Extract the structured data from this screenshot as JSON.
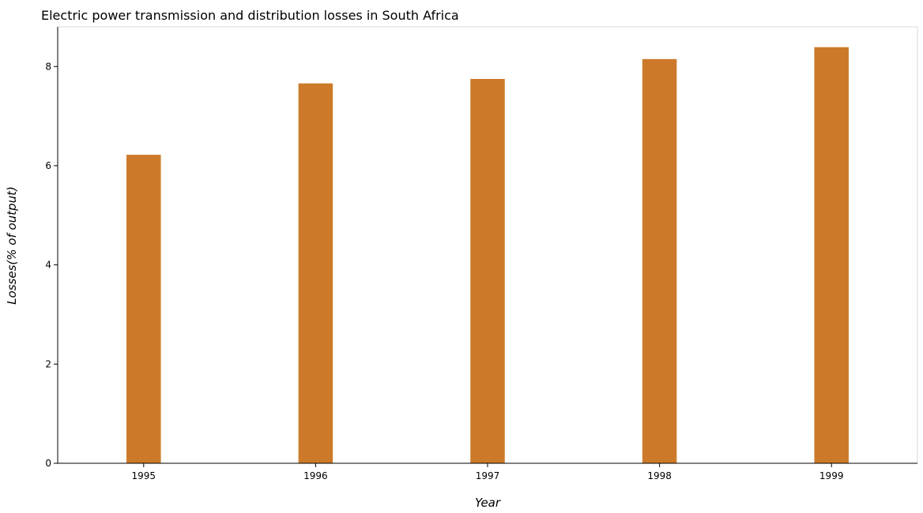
{
  "chart_data": {
    "type": "bar",
    "title": "Electric power transmission and distribution losses in South Africa",
    "xlabel": "Year",
    "ylabel": "Losses(% of output)",
    "categories": [
      "1995",
      "1996",
      "1997",
      "1998",
      "1999"
    ],
    "values": [
      6.22,
      7.66,
      7.75,
      8.15,
      8.39
    ],
    "ylim": [
      0,
      8.8
    ],
    "yticks": [
      "0",
      "2",
      "4",
      "6",
      "8"
    ],
    "bar_color": "#cc7a29",
    "grid": false,
    "legend": "none"
  }
}
